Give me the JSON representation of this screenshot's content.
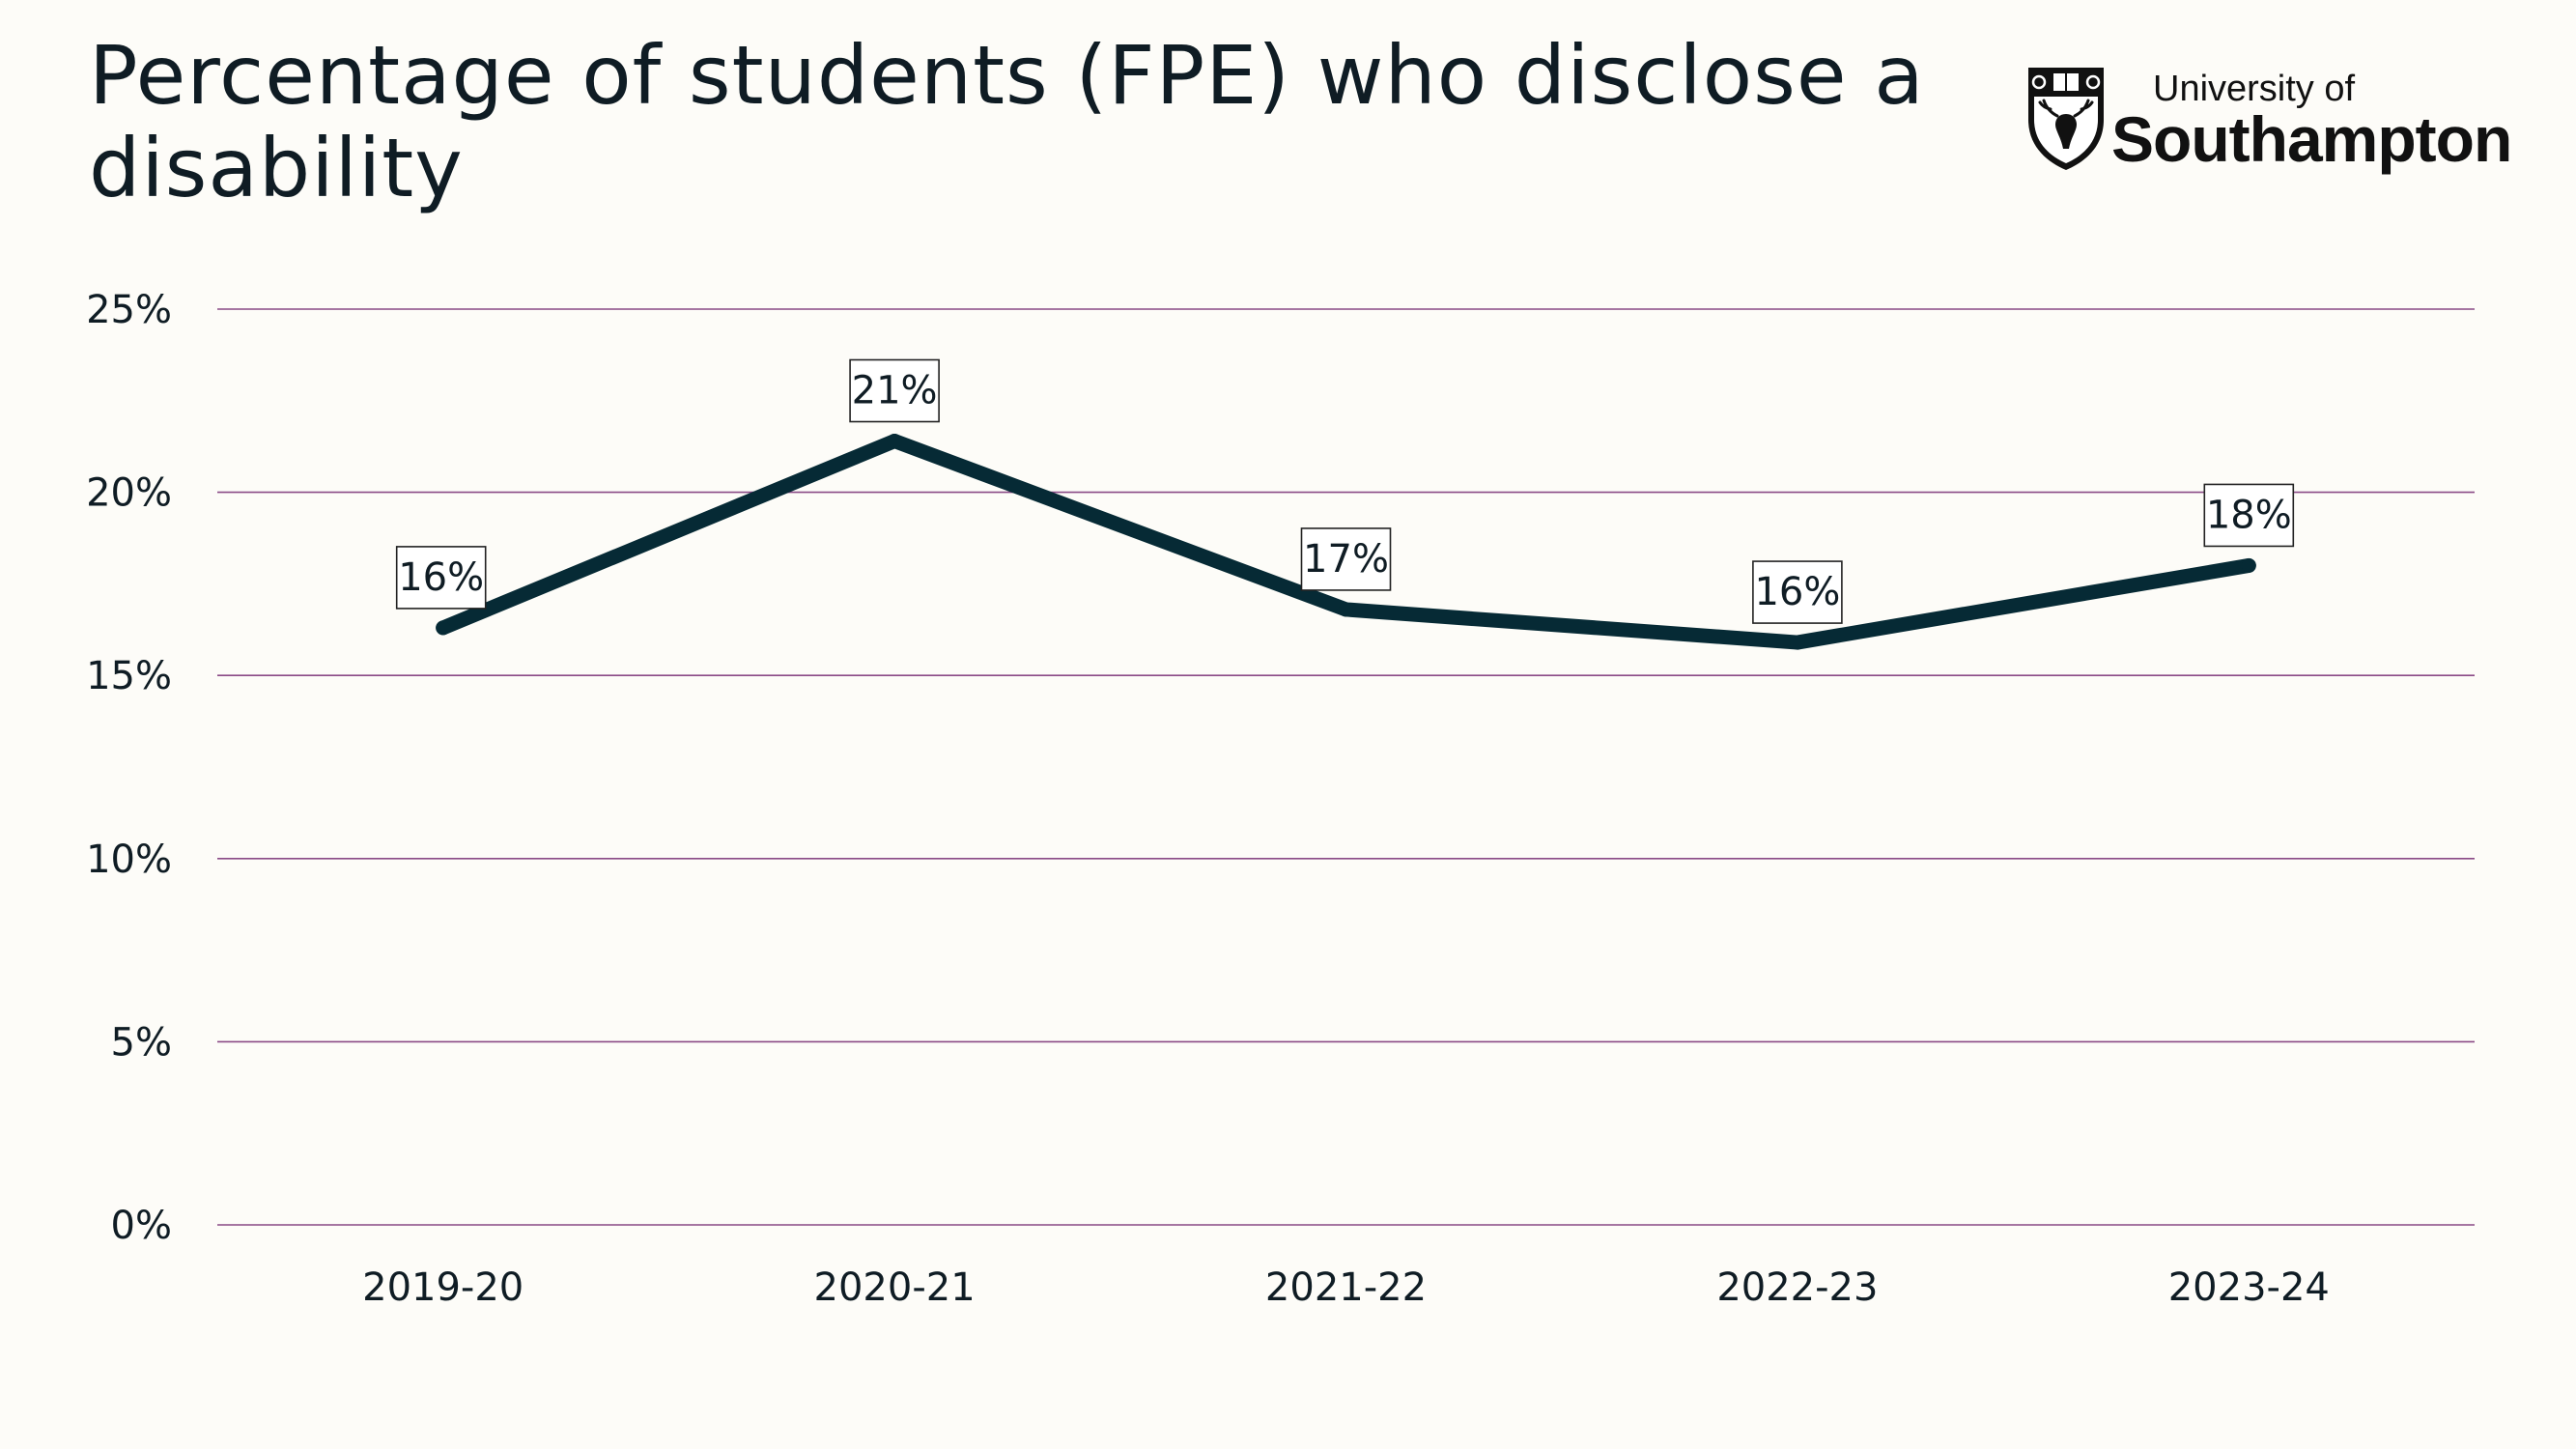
{
  "title": "Percentage of students (FPE) who disclose a disability",
  "logo": {
    "line1": "University of",
    "line2": "Southampton"
  },
  "colors": {
    "line": "#062a35",
    "gridline": "#8a4a86",
    "text": "#0f1c24",
    "background": "#fdfcf8"
  },
  "chart_data": {
    "type": "line",
    "title": "Percentage of students (FPE) who disclose a disability",
    "xlabel": "",
    "ylabel": "",
    "categories": [
      "2019-20",
      "2020-21",
      "2021-22",
      "2022-23",
      "2023-24"
    ],
    "series": [
      {
        "values": [
          16.3,
          21.4,
          16.8,
          15.9,
          18.0
        ],
        "data_labels": [
          "16%",
          "21%",
          "17%",
          "16%",
          "18%"
        ]
      }
    ],
    "ylim": [
      0,
      25
    ],
    "yticks": [
      0,
      5,
      10,
      15,
      20,
      25
    ],
    "ytick_labels": [
      "0%",
      "5%",
      "10%",
      "15%",
      "20%",
      "25%"
    ],
    "grid": "horizontal",
    "legend": "none"
  }
}
